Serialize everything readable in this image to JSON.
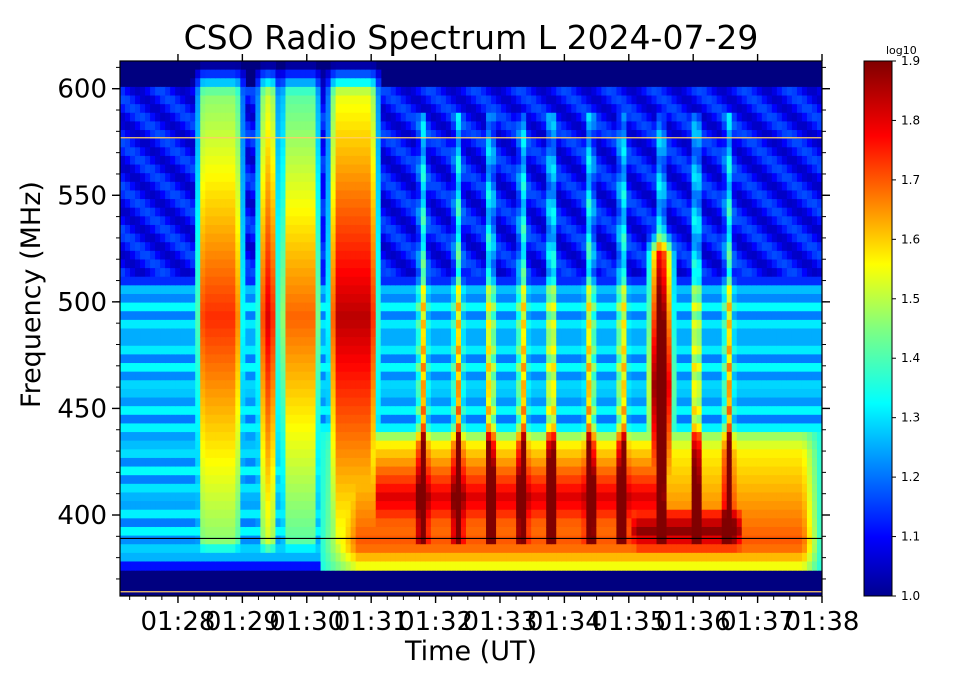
{
  "chart_data": {
    "type": "heatmap",
    "title": "CSO Radio Spectrum L 2024-07-29",
    "xlabel": "Time (UT)",
    "ylabel": "Frequency (MHz)",
    "x_ticks": [
      "01:28",
      "01:29",
      "01:30",
      "01:31",
      "01:32",
      "01:33",
      "01:34",
      "01:35",
      "01:36",
      "01:37",
      "01:38"
    ],
    "x_tick_minutes": [
      88,
      89,
      90,
      91,
      92,
      93,
      94,
      95,
      96,
      97,
      98
    ],
    "xlim_minutes": [
      87.1,
      98.0
    ],
    "y_ticks": [
      400,
      450,
      500,
      550,
      600
    ],
    "ylim": [
      362,
      613
    ],
    "colorbar": {
      "label": "log10",
      "ticks": [
        1.0,
        1.1,
        1.2,
        1.3,
        1.4,
        1.5,
        1.6,
        1.7,
        1.8,
        1.9
      ],
      "range": [
        1.0,
        1.9
      ],
      "colormap": "jet"
    },
    "background_level": 1.0,
    "continuum_floor_mhz": 380,
    "emission_regions": [
      {
        "t_start": 88.3,
        "t_end": 89.0,
        "f_low": 380,
        "f_high": 605,
        "peak": 1.75
      },
      {
        "t_start": 89.25,
        "t_end": 89.55,
        "f_low": 380,
        "f_high": 605,
        "peak": 1.82
      },
      {
        "t_start": 89.6,
        "t_end": 90.2,
        "f_low": 380,
        "f_high": 605,
        "peak": 1.7
      },
      {
        "t_start": 90.35,
        "t_end": 91.1,
        "f_low": 380,
        "f_high": 605,
        "peak": 1.85
      },
      {
        "t_start": 91.0,
        "t_end": 95.5,
        "f_low": 376,
        "f_high": 440,
        "peak": 1.82
      },
      {
        "t_start": 95.0,
        "t_end": 96.8,
        "f_low": 376,
        "f_high": 410,
        "peak": 1.9
      },
      {
        "t_start": 95.3,
        "t_end": 95.7,
        "f_low": 390,
        "f_high": 530,
        "peak": 1.88
      }
    ],
    "burst_times": [
      91.8,
      92.35,
      92.85,
      93.35,
      93.8,
      94.4,
      94.9,
      95.5,
      96.05,
      96.55
    ],
    "horizontal_lines_mhz": [
      577,
      389,
      364
    ]
  }
}
